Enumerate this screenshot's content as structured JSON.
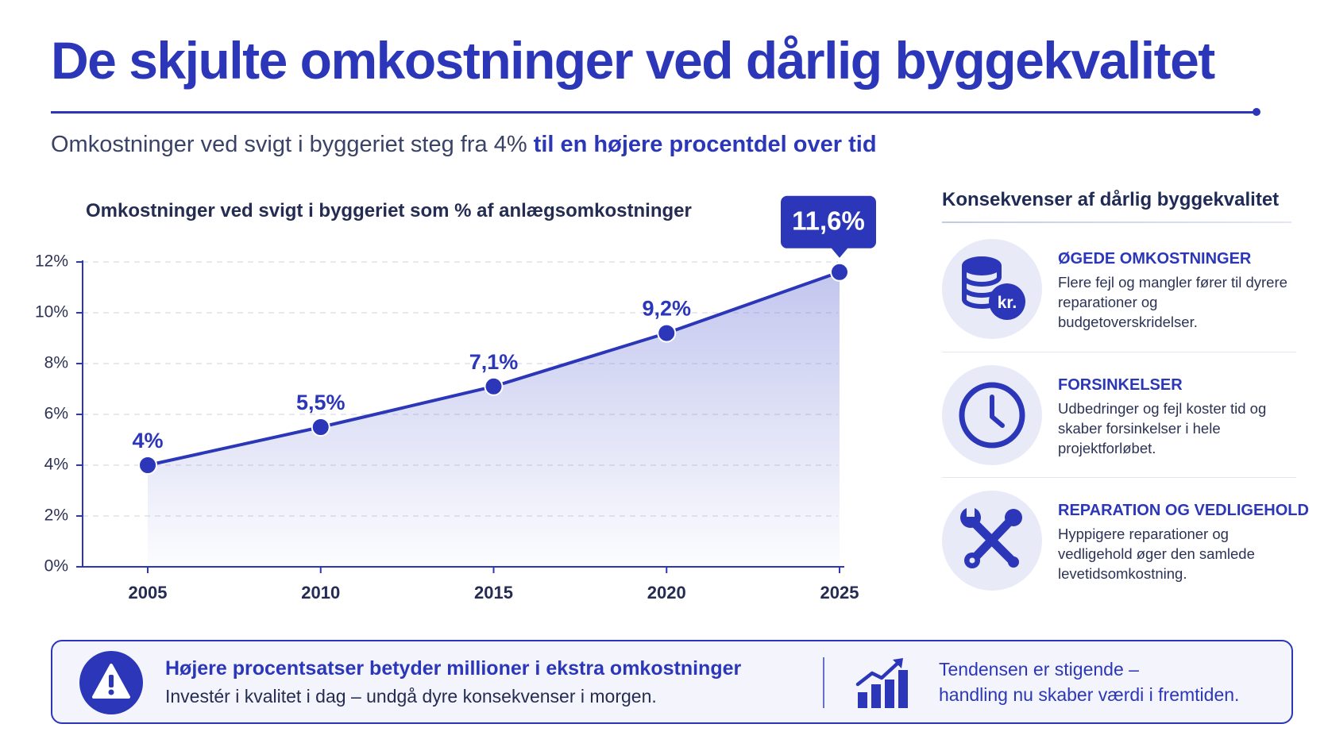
{
  "header": {
    "title": "De skjulte omkostninger ved dårlig byggekvalitet",
    "subtitle_plain": "Omkostninger ved svigt i byggeriet steg fra 4% ",
    "subtitle_highlight": "til en højere procentdel over tid"
  },
  "chart_data": {
    "type": "area",
    "title": "Omkostninger ved svigt i byggeriet som % af anlægsomkostninger",
    "categories": [
      "2005",
      "2010",
      "2015",
      "2020",
      "2025"
    ],
    "x": [
      2005,
      2010,
      2015,
      2020,
      2025
    ],
    "values": [
      4.0,
      5.5,
      7.1,
      9.2,
      11.6
    ],
    "data_labels": [
      "4%",
      "5,5%",
      "7,1%",
      "9,2%",
      "11,6%"
    ],
    "highlight_index": 4,
    "ylim": [
      0,
      12
    ],
    "yticks": [
      0,
      2,
      4,
      6,
      8,
      10,
      12
    ],
    "ytick_labels": [
      "0%",
      "2%",
      "4%",
      "6%",
      "8%",
      "10%",
      "12%"
    ],
    "grid": true,
    "xlabel": "",
    "ylabel": "",
    "color": "#2b37b8"
  },
  "sidebar": {
    "title": "Konsekvenser af dårlig byggekvalitet",
    "items": [
      {
        "icon": "coins-kr-icon",
        "icon_text": "kr.",
        "heading": "ØGEDE OMKOSTNINGER",
        "text": "Flere fejl og mangler fører til dyrere reparationer og budgetoverskridelser."
      },
      {
        "icon": "clock-icon",
        "heading": "FORSINKELSER",
        "text": "Udbedringer og fejl koster tid og skaber forsinkelser i hele projektforløbet."
      },
      {
        "icon": "tools-icon",
        "heading": "REPARATION OG VEDLIGEHOLD",
        "text": "Hyppigere reparationer og vedligehold øger den samlede levetidsomkostning."
      }
    ]
  },
  "banner": {
    "icon": "warning-icon",
    "heading": "Højere procentsatser betyder millioner i ekstra omkostninger",
    "subtext": "Investér i kvalitet i dag – undgå dyre konsekvenser i morgen.",
    "trend_icon": "trend-chart-icon",
    "trend_line1": "Tendensen er stigende –",
    "trend_line2": "handling nu skaber værdi i fremtiden."
  },
  "colors": {
    "accent": "#2b37b8",
    "icon_bg": "#e8eaf7",
    "text_dark": "#1f2a55"
  }
}
